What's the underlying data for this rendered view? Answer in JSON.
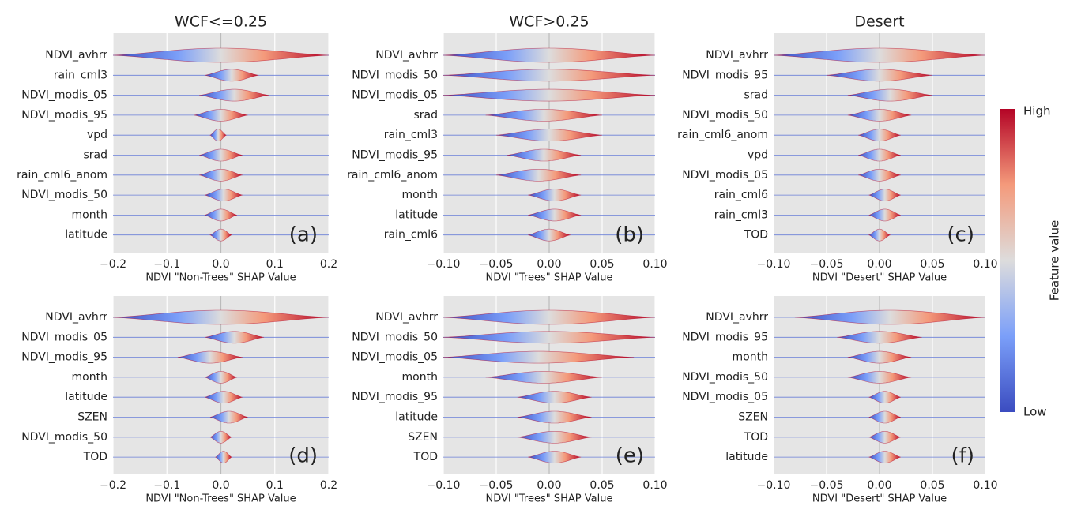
{
  "chart_data": [
    {
      "type": "violin",
      "title": "WCF<=0.25",
      "panel_label": "(a)",
      "x_label": "NDVI \"Non-Trees\" SHAP Value",
      "features": [
        "NDVI_avhrr",
        "rain_cml3",
        "NDVI_modis_05",
        "NDVI_modis_95",
        "vpd",
        "srad",
        "rain_cml6_anom",
        "NDVI_modis_50",
        "month",
        "latitude"
      ],
      "ranges": [
        [
          -0.2,
          0.2
        ],
        [
          -0.03,
          0.07
        ],
        [
          -0.04,
          0.09
        ],
        [
          -0.05,
          0.05
        ],
        [
          -0.02,
          0.01
        ],
        [
          -0.04,
          0.04
        ],
        [
          -0.04,
          0.04
        ],
        [
          -0.03,
          0.04
        ],
        [
          -0.03,
          0.03
        ],
        [
          -0.02,
          0.02
        ]
      ],
      "xlim": [
        -0.2,
        0.2
      ],
      "xticks": [
        {
          "value": -0.2,
          "label": "−0.2"
        },
        {
          "value": -0.1,
          "label": "−0.1"
        },
        {
          "value": 0,
          "label": "0.0"
        },
        {
          "value": 0.1,
          "label": "0.1"
        },
        {
          "value": 0.2,
          "label": "0.2"
        }
      ]
    },
    {
      "type": "violin",
      "title": "WCF>0.25",
      "panel_label": "(b)",
      "x_label": "NDVI \"Trees\" SHAP Value",
      "features": [
        "NDVI_avhrr",
        "NDVI_modis_50",
        "NDVI_modis_05",
        "srad",
        "rain_cml3",
        "NDVI_modis_95",
        "rain_cml6_anom",
        "month",
        "latitude",
        "rain_cml6"
      ],
      "ranges": [
        [
          -0.1,
          0.1
        ],
        [
          -0.1,
          0.1
        ],
        [
          -0.1,
          0.1
        ],
        [
          -0.06,
          0.05
        ],
        [
          -0.05,
          0.05
        ],
        [
          -0.04,
          0.03
        ],
        [
          -0.05,
          0.03
        ],
        [
          -0.02,
          0.03
        ],
        [
          -0.02,
          0.03
        ],
        [
          -0.02,
          0.02
        ]
      ],
      "xlim": [
        -0.1,
        0.1
      ],
      "xticks": [
        {
          "value": -0.1,
          "label": "−0.10"
        },
        {
          "value": -0.05,
          "label": "−0.05"
        },
        {
          "value": 0,
          "label": "0.00"
        },
        {
          "value": 0.05,
          "label": "0.05"
        },
        {
          "value": 0.1,
          "label": "0.10"
        }
      ]
    },
    {
      "type": "violin",
      "title": "Desert",
      "panel_label": "(c)",
      "x_label": "NDVI \"Desert\" SHAP Value",
      "features": [
        "NDVI_avhrr",
        "NDVI_modis_95",
        "srad",
        "NDVI_modis_50",
        "rain_cml6_anom",
        "vpd",
        "NDVI_modis_05",
        "rain_cml6",
        "rain_cml3",
        "TOD"
      ],
      "ranges": [
        [
          -0.1,
          0.1
        ],
        [
          -0.05,
          0.05
        ],
        [
          -0.03,
          0.05
        ],
        [
          -0.03,
          0.03
        ],
        [
          -0.02,
          0.02
        ],
        [
          -0.02,
          0.02
        ],
        [
          -0.02,
          0.02
        ],
        [
          -0.01,
          0.02
        ],
        [
          -0.01,
          0.02
        ],
        [
          -0.01,
          0.01
        ]
      ],
      "xlim": [
        -0.1,
        0.1
      ],
      "xticks": [
        {
          "value": -0.1,
          "label": "−0.10"
        },
        {
          "value": -0.05,
          "label": "−0.05"
        },
        {
          "value": 0,
          "label": "0.00"
        },
        {
          "value": 0.05,
          "label": "0.05"
        },
        {
          "value": 0.1,
          "label": "0.10"
        }
      ]
    },
    {
      "type": "violin",
      "panel_label": "(d)",
      "x_label": "NDVI \"Non-Trees\" SHAP Value",
      "features": [
        "NDVI_avhrr",
        "NDVI_modis_05",
        "NDVI_modis_95",
        "month",
        "latitude",
        "SZEN",
        "NDVI_modis_50",
        "TOD"
      ],
      "ranges": [
        [
          -0.2,
          0.2
        ],
        [
          -0.03,
          0.08
        ],
        [
          -0.08,
          0.04
        ],
        [
          -0.03,
          0.03
        ],
        [
          -0.03,
          0.04
        ],
        [
          -0.02,
          0.05
        ],
        [
          -0.02,
          0.02
        ],
        [
          -0.01,
          0.02
        ]
      ],
      "xlim": [
        -0.2,
        0.2
      ],
      "xticks": [
        {
          "value": -0.2,
          "label": "−0.2"
        },
        {
          "value": -0.1,
          "label": "−0.1"
        },
        {
          "value": 0,
          "label": "0.0"
        },
        {
          "value": 0.1,
          "label": "0.1"
        },
        {
          "value": 0.2,
          "label": "0.2"
        }
      ]
    },
    {
      "type": "violin",
      "panel_label": "(e)",
      "x_label": "NDVI \"Trees\" SHAP Value",
      "features": [
        "NDVI_avhrr",
        "NDVI_modis_50",
        "NDVI_modis_05",
        "month",
        "NDVI_modis_95",
        "latitude",
        "SZEN",
        "TOD"
      ],
      "ranges": [
        [
          -0.1,
          0.1
        ],
        [
          -0.1,
          0.1
        ],
        [
          -0.1,
          0.08
        ],
        [
          -0.06,
          0.05
        ],
        [
          -0.03,
          0.04
        ],
        [
          -0.03,
          0.04
        ],
        [
          -0.03,
          0.04
        ],
        [
          -0.02,
          0.03
        ]
      ],
      "xlim": [
        -0.1,
        0.1
      ],
      "xticks": [
        {
          "value": -0.1,
          "label": "−0.10"
        },
        {
          "value": -0.05,
          "label": "−0.05"
        },
        {
          "value": 0,
          "label": "0.00"
        },
        {
          "value": 0.05,
          "label": "0.05"
        },
        {
          "value": 0.1,
          "label": "0.10"
        }
      ]
    },
    {
      "type": "violin",
      "panel_label": "(f)",
      "x_label": "NDVI \"Desert\" SHAP Value",
      "features": [
        "NDVI_avhrr",
        "NDVI_modis_95",
        "month",
        "NDVI_modis_50",
        "NDVI_modis_05",
        "SZEN",
        "TOD",
        "latitude"
      ],
      "ranges": [
        [
          -0.08,
          0.1
        ],
        [
          -0.04,
          0.04
        ],
        [
          -0.03,
          0.03
        ],
        [
          -0.03,
          0.03
        ],
        [
          -0.01,
          0.02
        ],
        [
          -0.01,
          0.02
        ],
        [
          -0.01,
          0.02
        ],
        [
          -0.01,
          0.02
        ]
      ],
      "xlim": [
        -0.1,
        0.1
      ],
      "xticks": [
        {
          "value": -0.1,
          "label": "−0.10"
        },
        {
          "value": -0.05,
          "label": "−0.05"
        },
        {
          "value": 0,
          "label": "0.00"
        },
        {
          "value": 0.05,
          "label": "0.05"
        },
        {
          "value": 0.1,
          "label": "0.10"
        }
      ]
    }
  ],
  "colorbar": {
    "label": "Feature value",
    "high": "High",
    "low": "Low"
  }
}
